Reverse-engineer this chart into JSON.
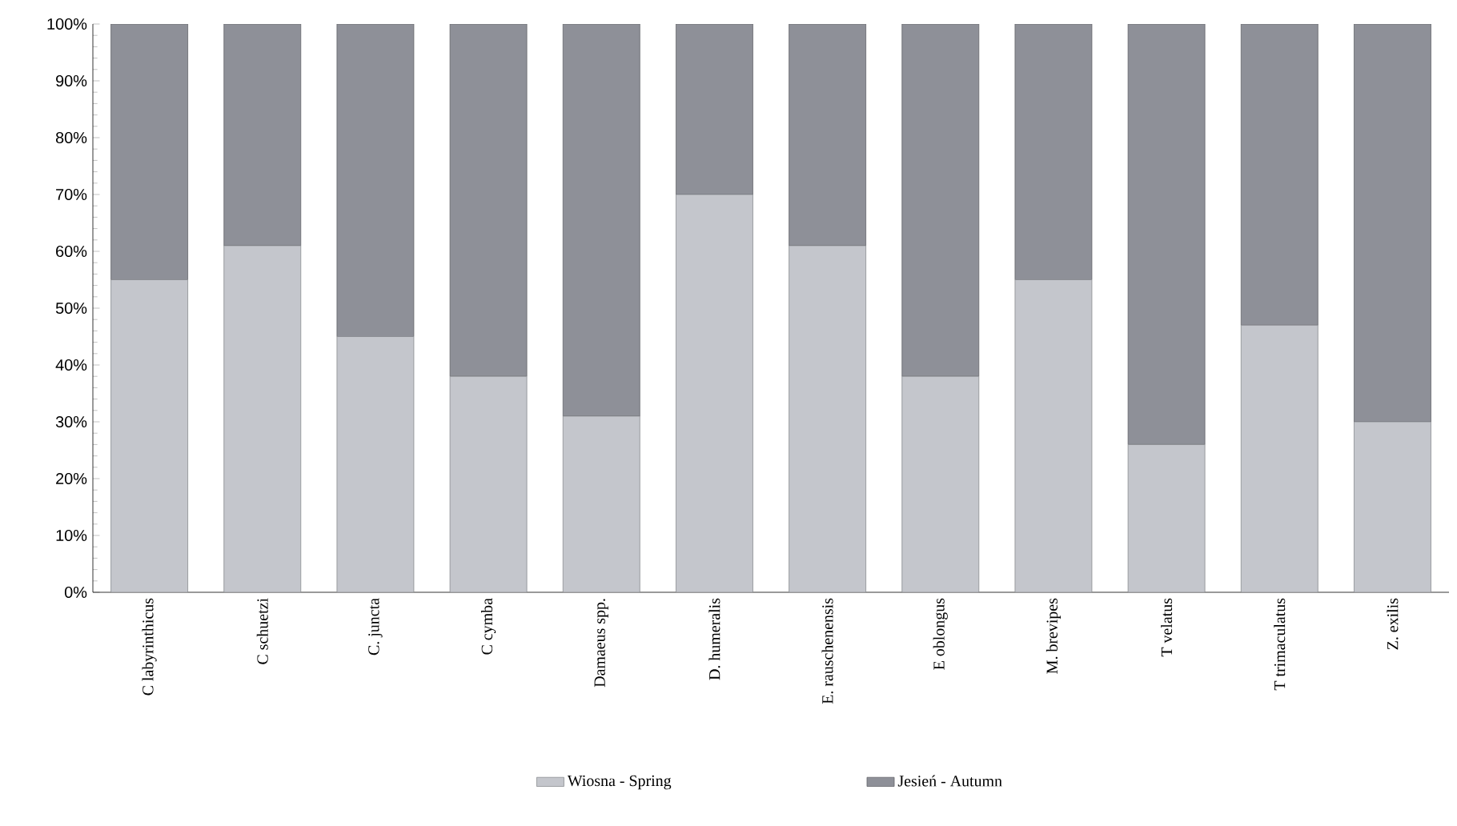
{
  "chart_data": {
    "type": "bar",
    "stacked": true,
    "categories": [
      "C labyrinthicus",
      "C schuetzi",
      "C. juncta",
      "C cymba",
      "Damaeus spp.",
      "D. humeralis",
      "E. rauschenensis",
      "E oblongus",
      "M. brevipes",
      "T velatus",
      "T trimaculatus",
      "Z. exilis"
    ],
    "series": [
      {
        "name": "Wiosna - Spring",
        "color": "#c4c6cc",
        "values": [
          55,
          61,
          45,
          38,
          31,
          70,
          61,
          38,
          55,
          26,
          47,
          30
        ]
      },
      {
        "name": "Jesień - Autumn",
        "color": "#8e9098",
        "values": [
          45,
          39,
          55,
          62,
          69,
          30,
          39,
          62,
          45,
          74,
          53,
          70
        ]
      }
    ],
    "ylim": [
      0,
      100
    ],
    "yticks": [
      {
        "value": 0,
        "label": "0%"
      },
      {
        "value": 10,
        "label": "10%"
      },
      {
        "value": 20,
        "label": "20%"
      },
      {
        "value": 30,
        "label": "30%"
      },
      {
        "value": 40,
        "label": "40%"
      },
      {
        "value": 50,
        "label": "50%"
      },
      {
        "value": 60,
        "label": "60%"
      },
      {
        "value": 70,
        "label": "70%"
      },
      {
        "value": 80,
        "label": "80%"
      },
      {
        "value": 90,
        "label": "90%"
      },
      {
        "value": 100,
        "label": "100%"
      }
    ],
    "legend": "bottom",
    "grid": false
  }
}
